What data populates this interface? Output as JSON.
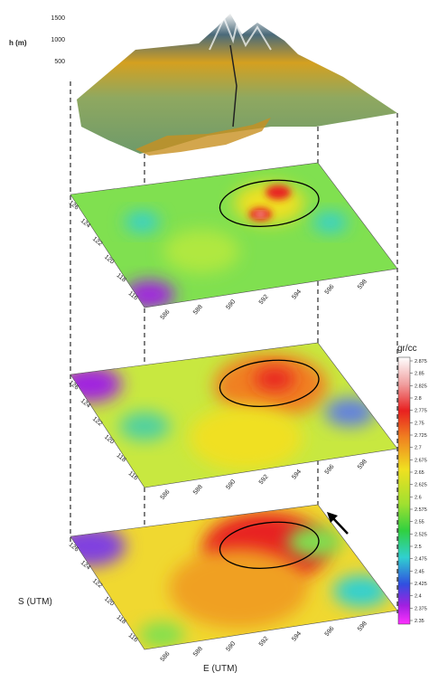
{
  "terrain": {
    "axis_label": "h (m)",
    "ticks": [
      1500,
      1000,
      500
    ]
  },
  "axes": {
    "s_label": "S (UTM)",
    "e_label": "E (UTM)",
    "s_ticks": [
      126,
      124,
      122,
      120,
      118,
      116
    ],
    "e_ticks": [
      586,
      588,
      590,
      592,
      594,
      596,
      598
    ]
  },
  "colorbar": {
    "unit": "gr/cc",
    "ticks": [
      2.875,
      2.85,
      2.825,
      2.8,
      2.775,
      2.75,
      2.725,
      2.7,
      2.675,
      2.65,
      2.625,
      2.6,
      2.575,
      2.55,
      2.525,
      2.5,
      2.475,
      2.45,
      2.425,
      2.4,
      2.375,
      2.35
    ]
  }
}
